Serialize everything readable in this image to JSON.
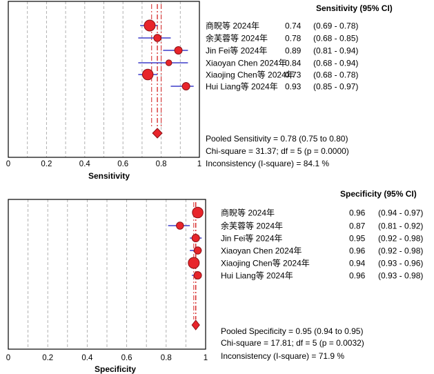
{
  "chart_data": [
    {
      "type": "forest",
      "metric": "Sensitivity",
      "header": "Sensitivity (95% CI)",
      "xlabel": "Sensitivity",
      "xlim": [
        0,
        1
      ],
      "ticks": [
        "0",
        "0.2",
        "0.4",
        "0.6",
        "0.8",
        "1"
      ],
      "grid": true,
      "studies": [
        {
          "label": "商睨等 2024年",
          "value": 0.74,
          "lower": 0.69,
          "upper": 0.78,
          "value_text": "0.74",
          "ci_text": "(0.69 - 0.78)",
          "weight": 1.0
        },
        {
          "label": "余芙蓉等 2024年",
          "value": 0.78,
          "lower": 0.68,
          "upper": 0.85,
          "value_text": "0.78",
          "ci_text": "(0.68 - 0.85)",
          "weight": 0.45
        },
        {
          "label": "Jin Fei等 2024年",
          "value": 0.89,
          "lower": 0.81,
          "upper": 0.94,
          "value_text": "0.89",
          "ci_text": "(0.81 - 0.94)",
          "weight": 0.5
        },
        {
          "label": "Xiaoyan Chen 2024年",
          "value": 0.84,
          "lower": 0.68,
          "upper": 0.94,
          "value_text": "0.84",
          "ci_text": "(0.68 - 0.94)",
          "weight": 0.25
        },
        {
          "label": "Xiaojing Chen等 2024年",
          "value": 0.73,
          "lower": 0.68,
          "upper": 0.78,
          "value_text": "0.73",
          "ci_text": "(0.68 - 0.78)",
          "weight": 0.95
        },
        {
          "label": "Hui Liang等 2024年",
          "value": 0.93,
          "lower": 0.85,
          "upper": 0.97,
          "value_text": "0.93",
          "ci_text": "(0.85 - 0.97)",
          "weight": 0.5
        }
      ],
      "pooled": {
        "value": 0.78,
        "lower": 0.75,
        "upper": 0.8
      },
      "summary": [
        "Pooled Sensitivity = 0.78 (0.75 to 0.80)",
        "Chi-square = 31.37; df =  5 (p = 0.0000)",
        "Inconsistency (I-square) = 84.1 %"
      ]
    },
    {
      "type": "forest",
      "metric": "Specificity",
      "header": "Specificity (95% CI)",
      "xlabel": "Specificity",
      "xlim": [
        0,
        1
      ],
      "ticks": [
        "0",
        "0.2",
        "0.4",
        "0.6",
        "0.8",
        "1"
      ],
      "grid": true,
      "studies": [
        {
          "label": "商睨等 2024年",
          "value": 0.96,
          "lower": 0.94,
          "upper": 0.97,
          "value_text": "0.96",
          "ci_text": "(0.94 - 0.97)",
          "weight": 0.95
        },
        {
          "label": "余芙蓉等 2024年",
          "value": 0.87,
          "lower": 0.81,
          "upper": 0.92,
          "value_text": "0.87",
          "ci_text": "(0.81 - 0.92)",
          "weight": 0.45
        },
        {
          "label": "Jin Fei等 2024年",
          "value": 0.95,
          "lower": 0.92,
          "upper": 0.98,
          "value_text": "0.95",
          "ci_text": "(0.92 - 0.98)",
          "weight": 0.5
        },
        {
          "label": "Xiaoyan Chen 2024年",
          "value": 0.96,
          "lower": 0.92,
          "upper": 0.98,
          "value_text": "0.96",
          "ci_text": "(0.92 - 0.98)",
          "weight": 0.45
        },
        {
          "label": "Xiaojing Chen等 2024年",
          "value": 0.94,
          "lower": 0.93,
          "upper": 0.96,
          "value_text": "0.94",
          "ci_text": "(0.93 - 0.96)",
          "weight": 1.0
        },
        {
          "label": "Hui Liang等 2024年",
          "value": 0.96,
          "lower": 0.93,
          "upper": 0.98,
          "value_text": "0.96",
          "ci_text": "(0.93 - 0.98)",
          "weight": 0.5
        }
      ],
      "pooled": {
        "value": 0.95,
        "lower": 0.94,
        "upper": 0.95
      },
      "summary": [
        "Pooled Specificity = 0.95 (0.94 to 0.95)",
        "Chi-square = 17.81; df =  5 (p = 0.0032)",
        "Inconsistency (I-square) = 71.9 %"
      ]
    }
  ],
  "colors": {
    "marker_fill": "#e8252b",
    "marker_stroke": "#8a1116",
    "ci_line": "#3c3cc8",
    "pooled_line": "#d42020",
    "grid": "#a8a8a8",
    "frame": "#000000"
  }
}
